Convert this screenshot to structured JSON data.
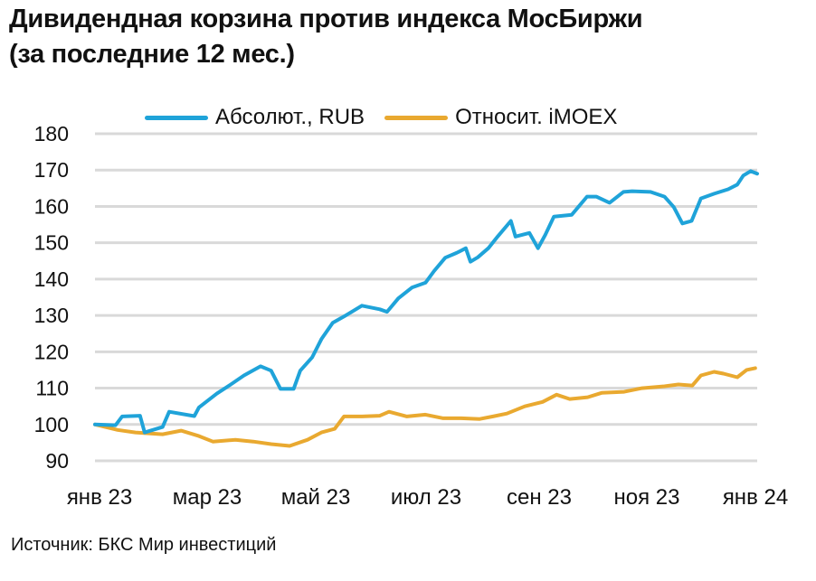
{
  "title": {
    "line1": "Дивидендная корзина против индекса МосБиржи",
    "line2": "(за последние 12 мес.)"
  },
  "legend": [
    {
      "label": "Абсолют., RUB",
      "color": "#1fa3d9"
    },
    {
      "label": "Относит. iMOEX",
      "color": "#e9a930"
    }
  ],
  "source": "Источник: БКС Мир инвестиций",
  "chart_data": {
    "type": "line",
    "title": "Дивидендная корзина против индекса МосБиржи (за последние 12 мес.)",
    "xlabel": "",
    "ylabel": "",
    "ylim": [
      90,
      180
    ],
    "yticks": [
      180,
      170,
      160,
      150,
      140,
      130,
      120,
      110,
      100,
      90
    ],
    "xticks": [
      "янв 23",
      "мар 23",
      "май 23",
      "июл 23",
      "сен 23",
      "ноя 23",
      "янв 24"
    ],
    "grid": "horizontal",
    "legend_position": "top",
    "x_range": [
      "2023-01",
      "2024-01"
    ],
    "series": [
      {
        "name": "Абсолют., RUB",
        "color": "#1fa3d9",
        "points": [
          [
            0.0,
            100.0
          ],
          [
            0.031,
            99.8
          ],
          [
            0.041,
            102.2
          ],
          [
            0.068,
            102.4
          ],
          [
            0.075,
            97.8
          ],
          [
            0.102,
            99.3
          ],
          [
            0.112,
            103.5
          ],
          [
            0.15,
            102.3
          ],
          [
            0.157,
            104.7
          ],
          [
            0.184,
            108.5
          ],
          [
            0.205,
            111.0
          ],
          [
            0.225,
            113.5
          ],
          [
            0.25,
            116.0
          ],
          [
            0.266,
            114.8
          ],
          [
            0.28,
            109.8
          ],
          [
            0.3,
            109.8
          ],
          [
            0.31,
            114.8
          ],
          [
            0.328,
            118.5
          ],
          [
            0.342,
            123.5
          ],
          [
            0.359,
            128.0
          ],
          [
            0.376,
            129.7
          ],
          [
            0.403,
            132.7
          ],
          [
            0.43,
            131.7
          ],
          [
            0.441,
            131.0
          ],
          [
            0.458,
            134.7
          ],
          [
            0.479,
            137.7
          ],
          [
            0.499,
            139.0
          ],
          [
            0.512,
            142.2
          ],
          [
            0.529,
            145.9
          ],
          [
            0.546,
            147.2
          ],
          [
            0.56,
            148.5
          ],
          [
            0.567,
            144.8
          ],
          [
            0.578,
            146.0
          ],
          [
            0.594,
            148.5
          ],
          [
            0.608,
            151.7
          ],
          [
            0.628,
            156.0
          ],
          [
            0.635,
            151.7
          ],
          [
            0.656,
            152.7
          ],
          [
            0.669,
            148.5
          ],
          [
            0.68,
            152.2
          ],
          [
            0.693,
            157.2
          ],
          [
            0.72,
            157.7
          ],
          [
            0.743,
            162.7
          ],
          [
            0.757,
            162.7
          ],
          [
            0.777,
            161.0
          ],
          [
            0.798,
            164.0
          ],
          [
            0.811,
            164.2
          ],
          [
            0.839,
            164.0
          ],
          [
            0.86,
            162.7
          ],
          [
            0.874,
            159.8
          ],
          [
            0.887,
            155.3
          ],
          [
            0.901,
            156.0
          ],
          [
            0.915,
            162.2
          ],
          [
            0.935,
            163.5
          ],
          [
            0.956,
            164.7
          ],
          [
            0.97,
            166.0
          ],
          [
            0.979,
            168.5
          ],
          [
            0.99,
            169.7
          ],
          [
            1.0,
            169.0
          ]
        ]
      },
      {
        "name": "Относит. iMOEX",
        "color": "#e9a930",
        "points": [
          [
            0.0,
            100.0
          ],
          [
            0.034,
            98.5
          ],
          [
            0.061,
            97.8
          ],
          [
            0.102,
            97.3
          ],
          [
            0.13,
            98.3
          ],
          [
            0.157,
            96.8
          ],
          [
            0.178,
            95.3
          ],
          [
            0.212,
            95.8
          ],
          [
            0.239,
            95.3
          ],
          [
            0.266,
            94.6
          ],
          [
            0.294,
            94.1
          ],
          [
            0.321,
            95.8
          ],
          [
            0.342,
            97.8
          ],
          [
            0.362,
            98.8
          ],
          [
            0.376,
            102.2
          ],
          [
            0.403,
            102.2
          ],
          [
            0.43,
            102.4
          ],
          [
            0.444,
            103.5
          ],
          [
            0.471,
            102.2
          ],
          [
            0.499,
            102.7
          ],
          [
            0.526,
            101.7
          ],
          [
            0.553,
            101.7
          ],
          [
            0.581,
            101.5
          ],
          [
            0.601,
            102.2
          ],
          [
            0.622,
            103.0
          ],
          [
            0.649,
            105.0
          ],
          [
            0.676,
            106.2
          ],
          [
            0.697,
            108.2
          ],
          [
            0.717,
            107.0
          ],
          [
            0.744,
            107.5
          ],
          [
            0.765,
            108.7
          ],
          [
            0.799,
            109.0
          ],
          [
            0.826,
            110.0
          ],
          [
            0.86,
            110.5
          ],
          [
            0.881,
            111.0
          ],
          [
            0.902,
            110.7
          ],
          [
            0.915,
            113.5
          ],
          [
            0.935,
            114.5
          ],
          [
            0.949,
            114.0
          ],
          [
            0.97,
            113.0
          ],
          [
            0.984,
            115.0
          ],
          [
            0.997,
            115.5
          ]
        ]
      }
    ]
  }
}
